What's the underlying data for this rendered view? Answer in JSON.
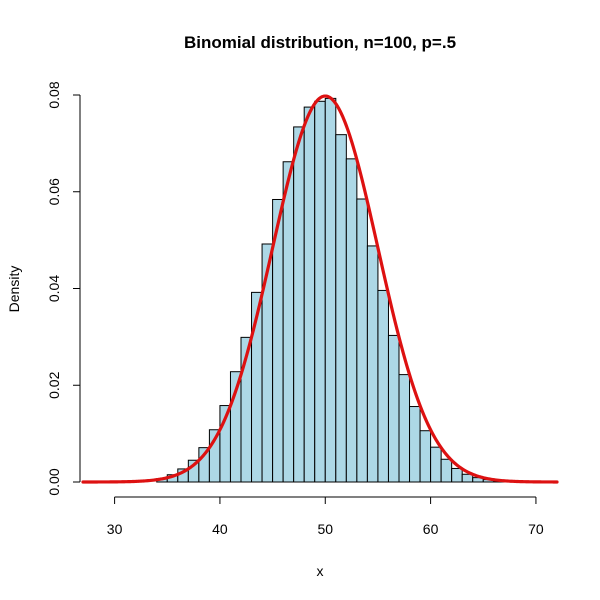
{
  "chart_data": {
    "type": "bar",
    "title": "Binomial distribution, n=100, p=.5",
    "xlabel": "x",
    "ylabel": "Density",
    "xlim": [
      27,
      72
    ],
    "ylim": [
      0,
      0.08
    ],
    "x_ticks": [
      30,
      40,
      50,
      60,
      70
    ],
    "x_tick_labels": [
      "30",
      "40",
      "50",
      "60",
      "70"
    ],
    "y_ticks": [
      0,
      0.02,
      0.04,
      0.06,
      0.08
    ],
    "y_tick_labels": [
      "0.00",
      "0.02",
      "0.04",
      "0.06",
      "0.08"
    ],
    "bin_width": 1,
    "bins": [
      {
        "left": 34,
        "density": 0.0007
      },
      {
        "left": 35,
        "density": 0.0015
      },
      {
        "left": 36,
        "density": 0.0027
      },
      {
        "left": 37,
        "density": 0.0045
      },
      {
        "left": 38,
        "density": 0.0071
      },
      {
        "left": 39,
        "density": 0.0108
      },
      {
        "left": 40,
        "density": 0.0158
      },
      {
        "left": 41,
        "density": 0.0228
      },
      {
        "left": 42,
        "density": 0.0299
      },
      {
        "left": 43,
        "density": 0.0392
      },
      {
        "left": 44,
        "density": 0.0492
      },
      {
        "left": 45,
        "density": 0.0584
      },
      {
        "left": 46,
        "density": 0.0662
      },
      {
        "left": 47,
        "density": 0.0734
      },
      {
        "left": 48,
        "density": 0.0775
      },
      {
        "left": 49,
        "density": 0.0787
      },
      {
        "left": 50,
        "density": 0.0793
      },
      {
        "left": 51,
        "density": 0.0718
      },
      {
        "left": 52,
        "density": 0.0668
      },
      {
        "left": 53,
        "density": 0.0585
      },
      {
        "left": 54,
        "density": 0.0488
      },
      {
        "left": 55,
        "density": 0.0396
      },
      {
        "left": 56,
        "density": 0.0303
      },
      {
        "left": 57,
        "density": 0.0222
      },
      {
        "left": 58,
        "density": 0.0156
      },
      {
        "left": 59,
        "density": 0.0106
      },
      {
        "left": 60,
        "density": 0.0072
      },
      {
        "left": 61,
        "density": 0.0047
      },
      {
        "left": 62,
        "density": 0.0028
      },
      {
        "left": 63,
        "density": 0.0016
      },
      {
        "left": 64,
        "density": 0.0009
      },
      {
        "left": 65,
        "density": 0.0005
      },
      {
        "left": 66,
        "density": 0.0002
      }
    ],
    "curve": {
      "type": "normal-density",
      "mean": 50,
      "sd": 5,
      "color": "#dd1111"
    },
    "bar_fill": "#add8e6",
    "grid": false
  }
}
